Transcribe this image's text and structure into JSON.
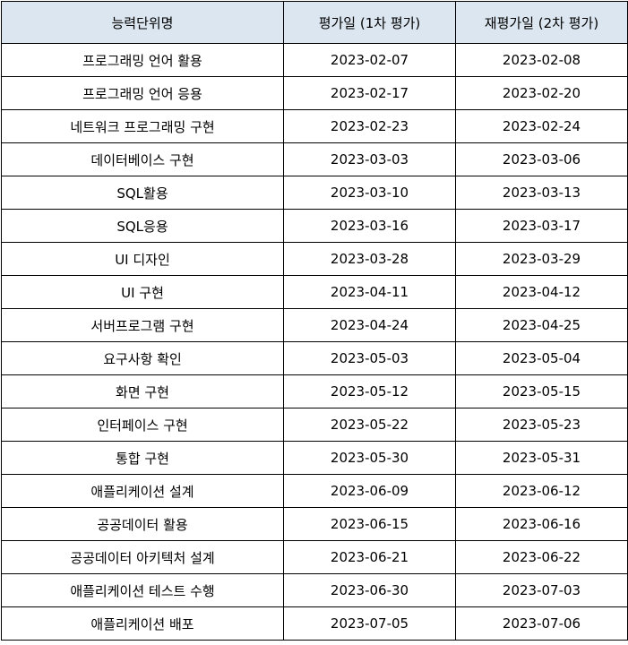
{
  "header": {
    "unit": "능력단위명",
    "eval_date": "평가일 (1차 평가)",
    "re_eval_date": "재평가일 (2차 평가)"
  },
  "rows": [
    {
      "unit": "프로그래밍 언어 활용",
      "eval": "2023-02-07",
      "reeval": "2023-02-08"
    },
    {
      "unit": "프로그래밍 언어 응용",
      "eval": "2023-02-17",
      "reeval": "2023-02-20"
    },
    {
      "unit": "네트워크 프로그래밍 구현",
      "eval": "2023-02-23",
      "reeval": "2023-02-24"
    },
    {
      "unit": "데이터베이스 구현",
      "eval": "2023-03-03",
      "reeval": "2023-03-06"
    },
    {
      "unit": "SQL활용",
      "eval": "2023-03-10",
      "reeval": "2023-03-13"
    },
    {
      "unit": "SQL응용",
      "eval": "2023-03-16",
      "reeval": "2023-03-17"
    },
    {
      "unit": "UI 디자인",
      "eval": "2023-03-28",
      "reeval": "2023-03-29"
    },
    {
      "unit": "UI 구현",
      "eval": "2023-04-11",
      "reeval": "2023-04-12"
    },
    {
      "unit": "서버프로그램 구현",
      "eval": "2023-04-24",
      "reeval": "2023-04-25"
    },
    {
      "unit": "요구사항 확인",
      "eval": "2023-05-03",
      "reeval": "2023-05-04"
    },
    {
      "unit": "화면 구현",
      "eval": "2023-05-12",
      "reeval": "2023-05-15"
    },
    {
      "unit": "인터페이스 구현",
      "eval": "2023-05-22",
      "reeval": "2023-05-23"
    },
    {
      "unit": "통합 구현",
      "eval": "2023-05-30",
      "reeval": "2023-05-31"
    },
    {
      "unit": "애플리케이션 설계",
      "eval": "2023-06-09",
      "reeval": "2023-06-12"
    },
    {
      "unit": "공공데이터 활용",
      "eval": "2023-06-15",
      "reeval": "2023-06-16"
    },
    {
      "unit": "공공데이터 아키텍처 설계",
      "eval": "2023-06-21",
      "reeval": "2023-06-22"
    },
    {
      "unit": "애플리케이션 테스트 수행",
      "eval": "2023-06-30",
      "reeval": "2023-07-03"
    },
    {
      "unit": "애플리케이션 배포",
      "eval": "2023-07-05",
      "reeval": "2023-07-06"
    }
  ]
}
